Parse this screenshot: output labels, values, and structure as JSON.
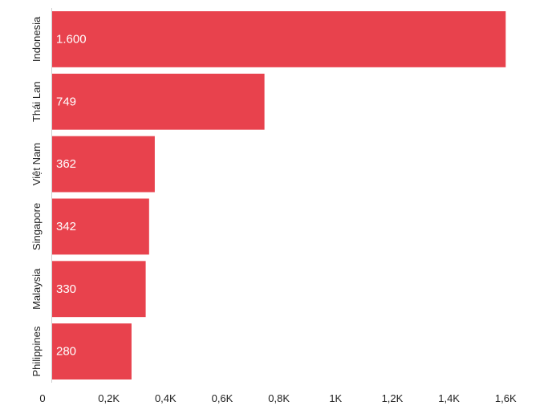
{
  "chart_data": {
    "type": "bar",
    "orientation": "horizontal",
    "title": "",
    "xlabel": "",
    "ylabel": "",
    "categories": [
      "Indonesia",
      "Thái Lan",
      "Việt Nam",
      "Singapore",
      "Malaysia",
      "Philippines"
    ],
    "values": [
      1600,
      749,
      362,
      342,
      330,
      280
    ],
    "value_labels": [
      "1.600",
      "749",
      "362",
      "342",
      "330",
      "280"
    ],
    "xlim": [
      0,
      1670
    ],
    "x_ticks": [
      {
        "value": 0,
        "label": "0"
      },
      {
        "value": 200,
        "label": "0,2K"
      },
      {
        "value": 400,
        "label": "0,4K"
      },
      {
        "value": 600,
        "label": "0,6K"
      },
      {
        "value": 800,
        "label": "0,8K"
      },
      {
        "value": 1000,
        "label": "1K"
      },
      {
        "value": 1200,
        "label": "1,2K"
      },
      {
        "value": 1400,
        "label": "1,4K"
      },
      {
        "value": 1600,
        "label": "1,6K"
      }
    ],
    "grid": false,
    "legend": "none",
    "bar_color": "#e8424d"
  }
}
